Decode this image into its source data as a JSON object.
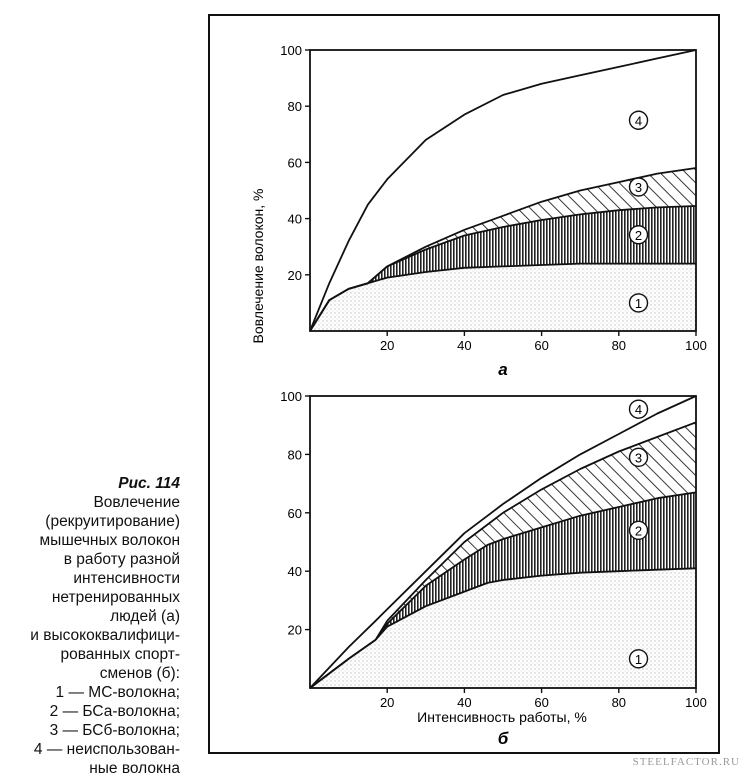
{
  "caption": {
    "figure": "Рис. 114",
    "lines": [
      "Вовлечение",
      "(рекруитирование)",
      "мышечных волокон",
      "в работу разной",
      "интенсивности",
      "нетренированных",
      "людей (а)",
      "и высококвалифици-",
      "рованных спорт-",
      "сменов (б):",
      "1 — МС-волокна;",
      "2 — БСа-волокна;",
      "3 — БСб-волокна;",
      "4 — неиспользован-",
      "ные волокна"
    ]
  },
  "watermark": "STEELFACTOR.RU",
  "ylabel": "Вовлечение волокон, %",
  "xlabel": "Интенсивность работы, %",
  "chart_data": [
    {
      "type": "area",
      "panel": "а",
      "x": [
        0,
        5,
        10,
        15,
        20,
        30,
        40,
        50,
        60,
        70,
        80,
        90,
        100
      ],
      "ylim": [
        0,
        100
      ],
      "xlim": [
        0,
        100
      ],
      "xticks": [
        20,
        40,
        60,
        80,
        100
      ],
      "yticks": [
        20,
        40,
        60,
        80,
        100
      ],
      "series": [
        {
          "name": "1",
          "values": [
            0,
            11,
            15,
            17,
            19,
            21,
            22.5,
            23,
            23.5,
            24,
            24,
            24,
            24
          ]
        },
        {
          "name": "2",
          "values": [
            0,
            11,
            15,
            17,
            23,
            29,
            34,
            37,
            39.5,
            41.5,
            43,
            44,
            44.5
          ]
        },
        {
          "name": "3",
          "values": [
            0,
            11,
            15,
            17,
            23,
            30,
            36,
            41,
            46,
            50,
            53,
            56,
            58
          ]
        },
        {
          "name": "4",
          "values": [
            0,
            17,
            32,
            45,
            54,
            68,
            77,
            84,
            88,
            91,
            94,
            97,
            100
          ]
        }
      ]
    },
    {
      "type": "area",
      "panel": "б",
      "x": [
        0,
        10,
        17,
        20,
        30,
        40,
        46,
        50,
        60,
        70,
        80,
        90,
        100
      ],
      "ylim": [
        0,
        100
      ],
      "xlim": [
        0,
        100
      ],
      "xticks": [
        20,
        40,
        60,
        80,
        100
      ],
      "yticks": [
        20,
        40,
        60,
        80,
        100
      ],
      "series": [
        {
          "name": "1",
          "values": [
            0,
            10,
            16.5,
            21,
            28,
            33,
            36,
            37,
            38.5,
            39.5,
            40,
            40.5,
            41
          ]
        },
        {
          "name": "2",
          "values": [
            0,
            10,
            16.5,
            22,
            35,
            44,
            49,
            51,
            55,
            59,
            62,
            65,
            67
          ]
        },
        {
          "name": "3",
          "values": [
            0,
            10,
            16.5,
            23,
            37,
            50,
            56,
            60,
            68,
            75,
            81,
            86,
            91
          ]
        },
        {
          "name": "4",
          "values": [
            0,
            14,
            23,
            27,
            40,
            53,
            59,
            63,
            72,
            80,
            87,
            94,
            100
          ]
        }
      ]
    }
  ]
}
